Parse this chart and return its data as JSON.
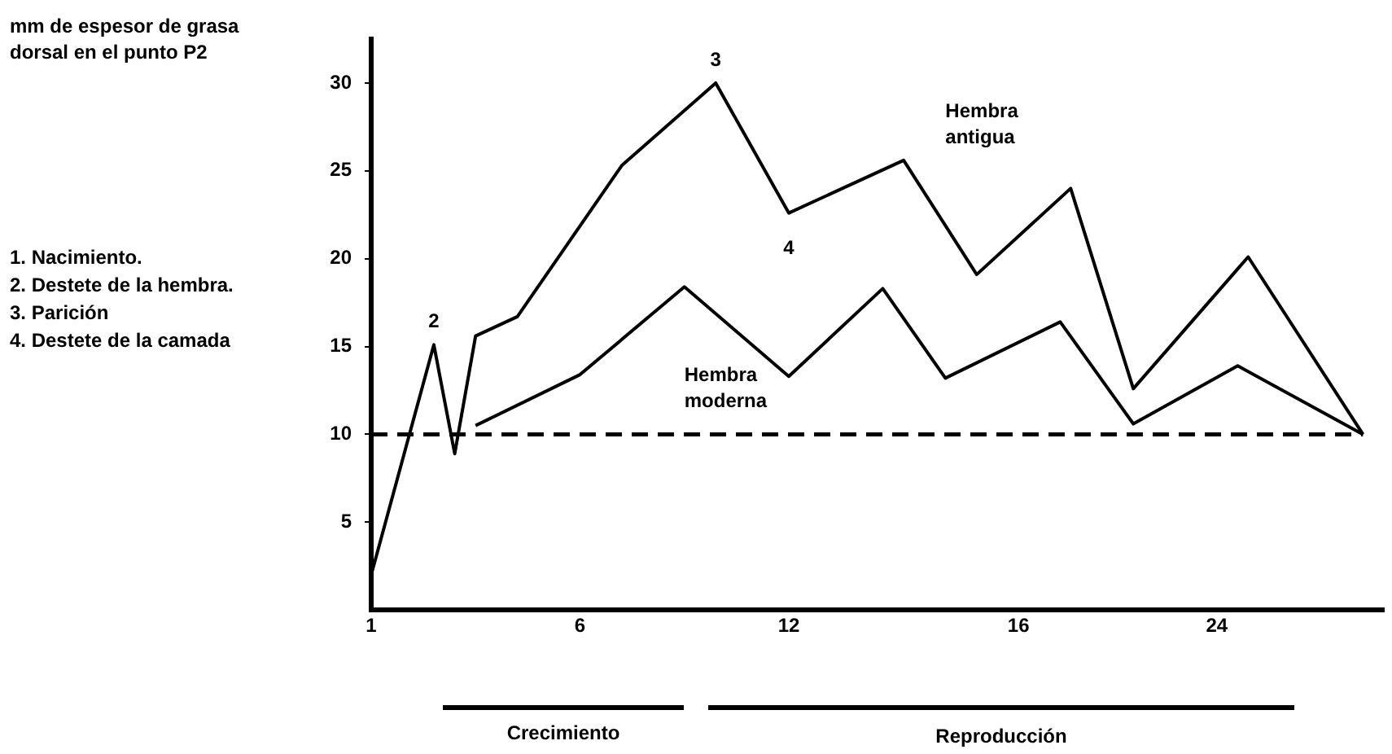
{
  "chart_data": {
    "type": "line",
    "ylabel": "mm de espesor de grasa dorsal en el punto P2",
    "categories": [
      "1",
      null,
      null,
      null,
      null,
      null,
      null,
      null,
      null,
      null,
      null,
      null,
      null,
      null,
      null,
      null,
      null,
      null,
      null,
      null,
      "6",
      null,
      null,
      null,
      null,
      null,
      null,
      null,
      null,
      null,
      null,
      null,
      null,
      null,
      null,
      null,
      null,
      null,
      null,
      null,
      "12",
      null,
      null,
      null,
      null,
      null,
      null,
      null,
      null,
      null,
      null,
      null,
      null,
      null,
      null,
      null,
      null,
      null,
      null,
      null,
      null,
      null,
      "16",
      null,
      null,
      null,
      null,
      null,
      null,
      null,
      null,
      null,
      null,
      null,
      null,
      null,
      null,
      null,
      null,
      null,
      null,
      "24",
      null,
      null,
      null,
      null,
      null,
      null,
      null,
      null,
      null,
      null,
      null,
      null,
      null,
      null,
      null,
      null
    ],
    "ylim": [
      0,
      32.5
    ],
    "yticks": [
      5,
      10,
      15,
      20,
      25,
      30
    ],
    "series": [
      {
        "name": "Hembra antigua",
        "color": "#000000",
        "values": [
          2,
          null,
          null,
          null,
          null,
          null,
          15.1,
          null,
          8.9,
          null,
          15.6,
          null,
          null,
          null,
          16.7,
          null,
          null,
          null,
          null,
          null,
          null,
          null,
          null,
          null,
          25.3,
          null,
          null,
          null,
          null,
          null,
          null,
          null,
          null,
          30,
          null,
          null,
          null,
          null,
          null,
          null,
          22.6,
          null,
          null,
          null,
          null,
          null,
          null,
          null,
          null,
          null,
          null,
          25.6,
          null,
          null,
          null,
          null,
          null,
          null,
          19.1,
          null,
          null,
          null,
          null,
          null,
          null,
          null,
          null,
          24,
          null,
          null,
          null,
          null,
          null,
          12.6,
          null,
          null,
          null,
          null,
          null,
          null,
          null,
          null,
          null,
          null,
          20.1,
          null,
          null,
          null,
          null,
          null,
          null,
          null,
          null,
          null,
          null,
          10,
          null,
          null
        ]
      },
      {
        "name": "Hembra moderna",
        "color": "#000000",
        "values": [
          null,
          null,
          null,
          null,
          null,
          null,
          null,
          null,
          null,
          null,
          10.5,
          null,
          null,
          null,
          null,
          null,
          null,
          null,
          null,
          null,
          13.4,
          null,
          null,
          null,
          null,
          null,
          null,
          null,
          null,
          null,
          18.4,
          null,
          null,
          null,
          null,
          null,
          null,
          null,
          null,
          null,
          13.3,
          null,
          null,
          null,
          null,
          null,
          null,
          null,
          null,
          18.3,
          null,
          null,
          null,
          null,
          null,
          13.2,
          null,
          null,
          null,
          null,
          null,
          null,
          null,
          null,
          null,
          null,
          16.4,
          null,
          null,
          null,
          null,
          null,
          null,
          10.6,
          null,
          null,
          null,
          null,
          null,
          null,
          null,
          null,
          null,
          13.9,
          null,
          null,
          null,
          null,
          null,
          null,
          null,
          null,
          null,
          null,
          null,
          10,
          null,
          null
        ]
      }
    ],
    "ref_lines": [
      {
        "axis": "y",
        "value": 10,
        "line_style": "dashed",
        "color": "#000000"
      }
    ],
    "annotations": [
      {
        "text": "2",
        "y": 15.1
      },
      {
        "text": "3",
        "y": 30
      },
      {
        "text": "4",
        "y": 22.6
      },
      "1. Nacimiento.\n2. Destete de la hembra.\n3. Parición\n4. Destete de la camada",
      "Crecimiento",
      "Reproducción"
    ],
    "marker": "none",
    "line_style": "solid",
    "grid": false,
    "legend": false
  }
}
